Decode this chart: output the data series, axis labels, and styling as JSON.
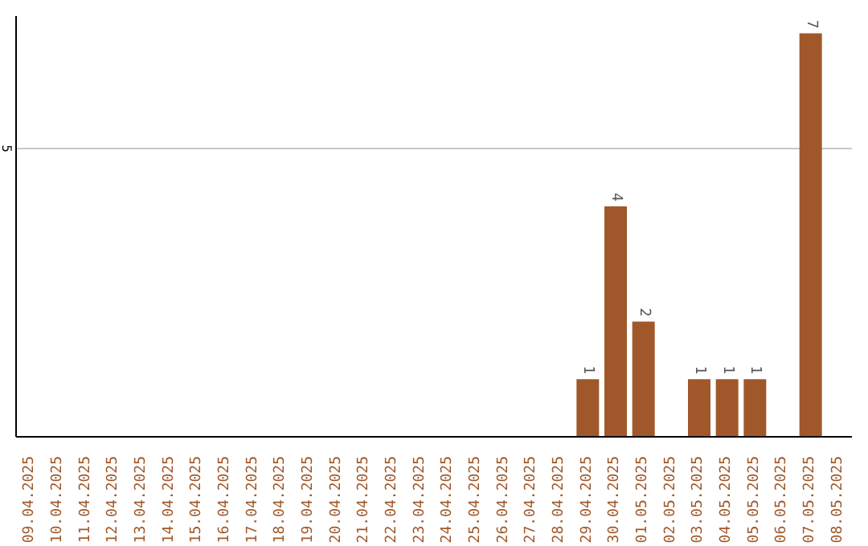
{
  "chart_data": {
    "type": "bar",
    "categories": [
      "09.04.2025",
      "10.04.2025",
      "11.04.2025",
      "12.04.2025",
      "13.04.2025",
      "14.04.2025",
      "15.04.2025",
      "16.04.2025",
      "17.04.2025",
      "18.04.2025",
      "19.04.2025",
      "20.04.2025",
      "21.04.2025",
      "22.04.2025",
      "23.04.2025",
      "24.04.2025",
      "25.04.2025",
      "26.04.2025",
      "27.04.2025",
      "28.04.2025",
      "29.04.2025",
      "30.04.2025",
      "01.05.2025",
      "02.05.2025",
      "03.05.2025",
      "04.05.2025",
      "05.05.2025",
      "06.05.2025",
      "07.05.2025",
      "08.05.2025"
    ],
    "values": [
      null,
      null,
      null,
      null,
      null,
      null,
      null,
      null,
      null,
      null,
      null,
      null,
      null,
      null,
      null,
      null,
      null,
      null,
      null,
      null,
      1,
      4,
      2,
      null,
      1,
      1,
      1,
      null,
      7,
      null
    ],
    "color": "#a0582a",
    "ylim": [
      0,
      7.3
    ],
    "yticks": [
      5
    ],
    "grid": "y",
    "data_labels": true
  }
}
